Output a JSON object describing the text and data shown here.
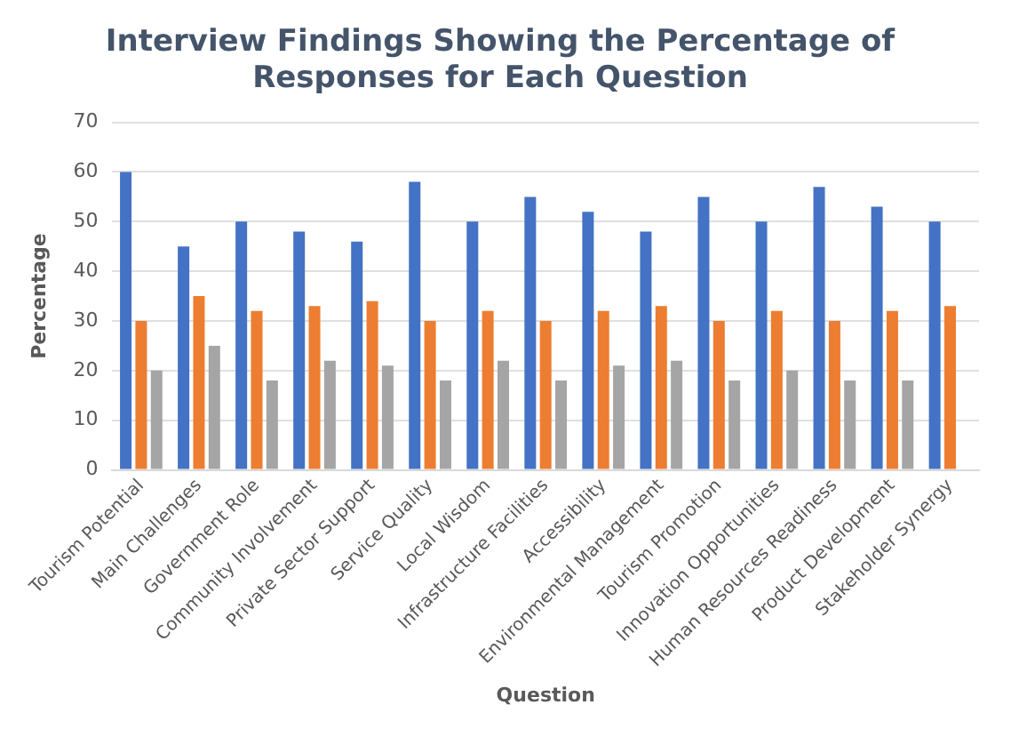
{
  "chart_data": {
    "type": "bar",
    "title": "Interview Findings Showing the Percentage of Responses for Each Question",
    "xlabel": "Question",
    "ylabel": "Percentage",
    "categories": [
      "Tourism Potential",
      "Main Challenges",
      "Government Role",
      "Community Involvement",
      "Private Sector Support",
      "Service Quality",
      "Local Wisdom",
      "Infrastructure Facilities",
      "Accessibility",
      "Environmental Management",
      "Tourism Promotion",
      "Innovation Opportunities",
      "Human Resources Readiness",
      "Product Development",
      "Stakeholder Synergy"
    ],
    "series": [
      {
        "color": "#4472c4",
        "values": [
          60,
          45,
          50,
          48,
          46,
          58,
          50,
          55,
          52,
          48,
          55,
          50,
          57,
          53,
          50
        ]
      },
      {
        "color": "#ed7d31",
        "values": [
          30,
          35,
          32,
          33,
          34,
          30,
          32,
          30,
          32,
          33,
          30,
          32,
          30,
          32,
          33
        ]
      },
      {
        "color": "#a5a5a5",
        "values": [
          20,
          25,
          18,
          22,
          21,
          18,
          22,
          18,
          21,
          22,
          18,
          20,
          18,
          18,
          null
        ]
      }
    ],
    "ylim": [
      0,
      70
    ],
    "yticks": [
      0,
      10,
      20,
      30,
      40,
      50,
      60,
      70
    ],
    "grid": "y",
    "legend": false
  }
}
